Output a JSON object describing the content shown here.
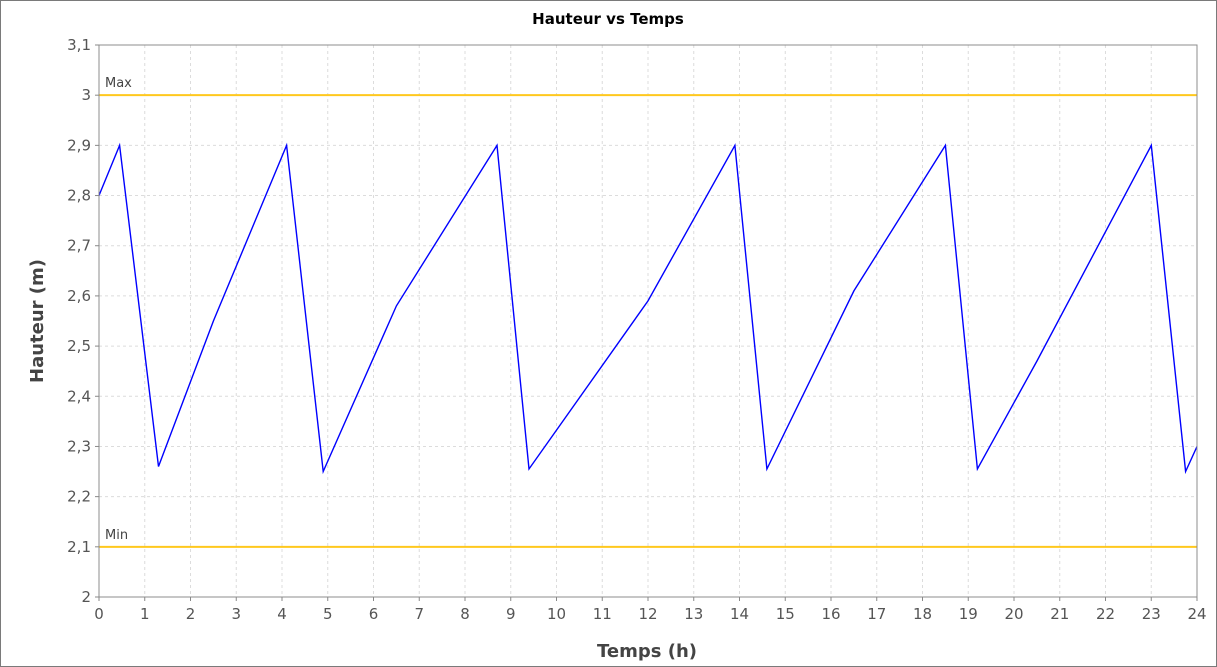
{
  "colors": {
    "series": "#0000ff",
    "marker": "#ffc81e",
    "grid": "#dcdcdc",
    "plot_border": "#8c8c8c"
  },
  "chart_data": {
    "type": "line",
    "title": "Hauteur vs Temps",
    "xlabel": "Temps (h)",
    "ylabel": "Hauteur (m)",
    "xlim": [
      0,
      24
    ],
    "ylim": [
      2.0,
      3.1
    ],
    "x_ticks": [
      0,
      1,
      2,
      3,
      4,
      5,
      6,
      7,
      8,
      9,
      10,
      11,
      12,
      13,
      14,
      15,
      16,
      17,
      18,
      19,
      20,
      21,
      22,
      23,
      24
    ],
    "x_tick_labels": [
      "0",
      "1",
      "2",
      "3",
      "4",
      "5",
      "6",
      "7",
      "8",
      "9",
      "10",
      "11",
      "12",
      "13",
      "14",
      "15",
      "16",
      "17",
      "18",
      "19",
      "20",
      "21",
      "22",
      "23",
      "24"
    ],
    "y_ticks": [
      2.0,
      2.1,
      2.2,
      2.3,
      2.4,
      2.5,
      2.6,
      2.7,
      2.8,
      2.9,
      3.0,
      3.1
    ],
    "y_tick_labels": [
      "2",
      "2,1",
      "2,2",
      "2,3",
      "2,4",
      "2,5",
      "2,6",
      "2,7",
      "2,8",
      "2,9",
      "3",
      "3,1"
    ],
    "grid": true,
    "markers": [
      {
        "label": "Max",
        "value": 3.0
      },
      {
        "label": "Min",
        "value": 2.1
      }
    ],
    "series": [
      {
        "x": [
          0,
          0.45,
          1.3,
          2.5,
          4.1,
          4.9,
          6.5,
          8.7,
          9.4,
          12.0,
          13.9,
          14.6,
          16.5,
          18.5,
          19.2,
          20.5,
          23.0,
          23.75,
          24.0
        ],
        "y": [
          2.8,
          2.9,
          2.26,
          2.55,
          2.9,
          2.25,
          2.58,
          2.9,
          2.255,
          2.59,
          2.9,
          2.255,
          2.61,
          2.9,
          2.255,
          2.47,
          2.9,
          2.25,
          2.3
        ]
      }
    ]
  }
}
